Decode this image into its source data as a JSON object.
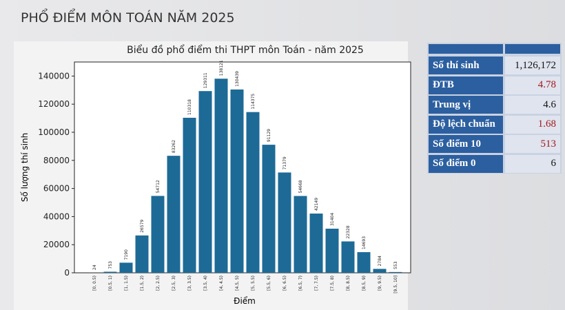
{
  "heading": "PHỔ ĐIỂM MÔN TOÁN NĂM 2025",
  "chart_data": {
    "type": "bar",
    "title": "Biểu đồ phổ điểm thi THPT môn Toán - năm 2025",
    "x_label": "Điểm",
    "y_label": "Số lượng thí sinh",
    "categories": [
      "[0, 0.5)",
      "[0.5, 1)",
      "[1, 1.5)",
      "[1.5, 2)",
      "[2, 2.5)",
      "[2.5, 3)",
      "[3, 3.5)",
      "[3.5, 4)",
      "[4, 4.5)",
      "[4.5, 5)",
      "[5, 5.5)",
      "[5.5, 6)",
      "[6, 6.5)",
      "[6.5, 7)",
      "[7, 7.5)",
      "[7.5, 8)",
      "[8, 8.5)",
      "[8.5, 9)",
      "[9, 9.5)",
      "[9.5, 10]"
    ],
    "values": [
      24,
      753,
      7190,
      26579,
      54712,
      83262,
      110318,
      129311,
      138121,
      130439,
      114375,
      91129,
      71379,
      54668,
      42149,
      31404,
      22328,
      14693,
      2784,
      553
    ],
    "color": "#1d6a96",
    "ylim": [
      0,
      150000
    ],
    "yticks": [
      0,
      20000,
      40000,
      60000,
      80000,
      100000,
      120000,
      140000
    ]
  },
  "stats_table": {
    "rows": [
      {
        "label": "Số thí sinh",
        "value": "1,126,172",
        "color": "#111111"
      },
      {
        "label": "ĐTB",
        "value": "4.78",
        "color": "#a3161b"
      },
      {
        "label": "Trung vị",
        "value": "4.6",
        "color": "#111111"
      },
      {
        "label": "Độ lệch chuẩn",
        "value": "1.68",
        "color": "#a3161b"
      },
      {
        "label": "Số điểm 10",
        "value": "513",
        "color": "#a3161b"
      },
      {
        "label": "Số điểm 0",
        "value": "6",
        "color": "#111111"
      }
    ]
  }
}
